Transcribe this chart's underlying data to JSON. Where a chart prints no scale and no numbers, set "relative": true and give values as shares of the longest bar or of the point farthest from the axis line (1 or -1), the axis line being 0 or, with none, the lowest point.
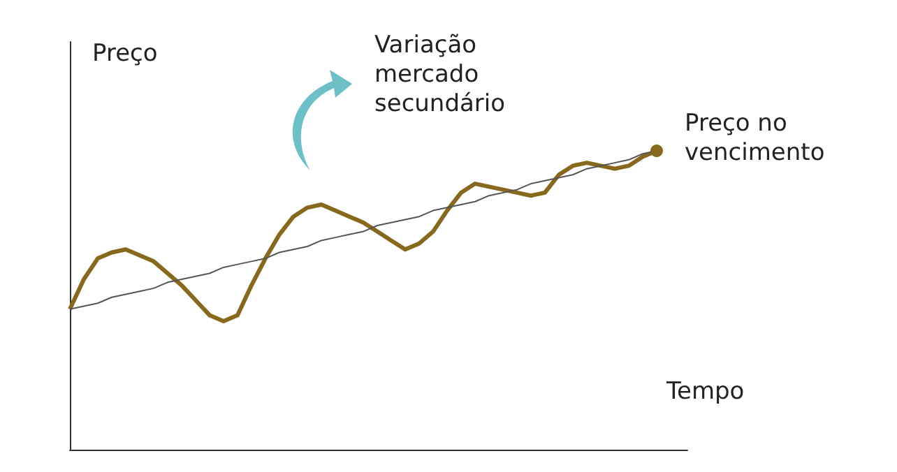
{
  "chart_data": {
    "type": "line",
    "relative": true,
    "xlabel": "Tempo",
    "ylabel": "Preço",
    "annotations": [
      "Variação mercado secundário",
      "Preço no vencimento"
    ],
    "categories": [
      null,
      null,
      null,
      null,
      null,
      null,
      null,
      null,
      null,
      null,
      null,
      null,
      null,
      null,
      null,
      null,
      null,
      null,
      null,
      null,
      null,
      null,
      null,
      null,
      null,
      null,
      null,
      null,
      null,
      null,
      null,
      null,
      null,
      null,
      null,
      null,
      null,
      null,
      null,
      null,
      null,
      null,
      null
    ],
    "series": [
      {
        "color": "#86691c",
        "values": [
          0.47,
          0.57,
          0.64,
          0.66,
          0.67,
          0.65,
          0.63,
          0.59,
          0.55,
          0.5,
          0.45,
          0.43,
          0.45,
          0.55,
          0.64,
          0.72,
          0.78,
          0.81,
          0.82,
          0.8,
          0.78,
          0.76,
          0.73,
          0.7,
          0.67,
          0.69,
          0.73,
          0.8,
          0.86,
          0.89,
          0.88,
          0.87,
          0.86,
          0.85,
          0.86,
          0.92,
          0.95,
          0.96,
          0.95,
          0.94,
          0.95,
          0.98,
          1.0
        ]
      },
      {
        "color": "#555555",
        "values": [
          0.47,
          0.48,
          0.49,
          0.51,
          0.52,
          0.53,
          0.54,
          0.56,
          0.57,
          0.58,
          0.59,
          0.61,
          0.62,
          0.63,
          0.64,
          0.66,
          0.67,
          0.68,
          0.7,
          0.71,
          0.72,
          0.73,
          0.75,
          0.76,
          0.77,
          0.78,
          0.8,
          0.81,
          0.82,
          0.83,
          0.85,
          0.86,
          0.87,
          0.89,
          0.9,
          0.91,
          0.92,
          0.94,
          0.95,
          0.96,
          0.97,
          0.99,
          1.0
        ]
      }
    ],
    "grid": false,
    "marker": "none"
  }
}
